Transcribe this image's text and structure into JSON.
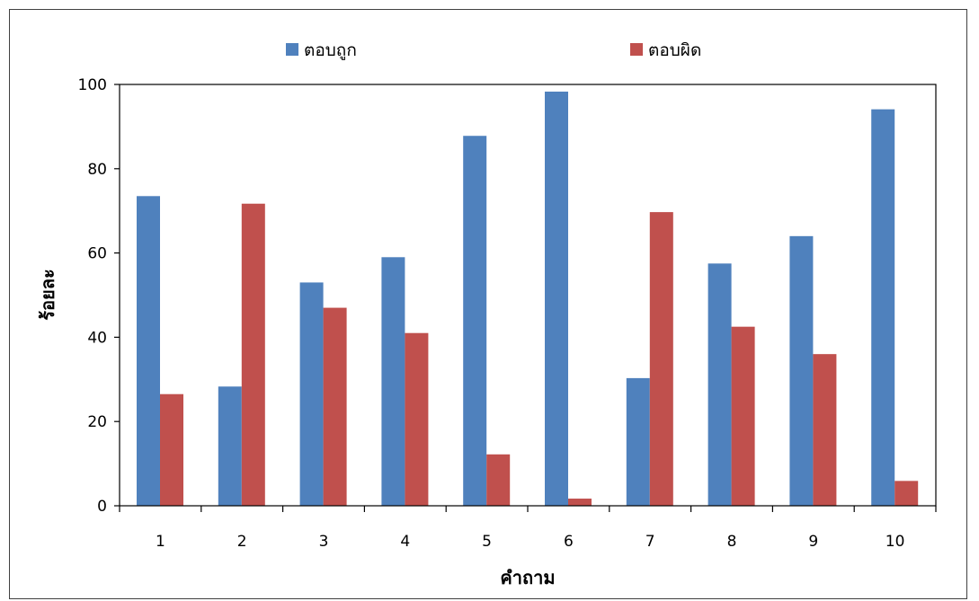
{
  "chart_data": {
    "type": "bar",
    "title": "",
    "xlabel": "คำถาม",
    "ylabel": "ร้อยละ",
    "categories": [
      "1",
      "2",
      "3",
      "4",
      "5",
      "6",
      "7",
      "8",
      "9",
      "10"
    ],
    "series": [
      {
        "name": "ตอบถูก",
        "color": "#4F81BD",
        "values": [
          73.5,
          28.3,
          53.0,
          59.0,
          87.8,
          98.3,
          30.3,
          57.5,
          64.0,
          94.1
        ]
      },
      {
        "name": "ตอบผิด",
        "color": "#C0504D",
        "values": [
          26.5,
          71.7,
          47.0,
          41.0,
          12.2,
          1.7,
          69.7,
          42.5,
          36.0,
          5.9
        ]
      }
    ],
    "ylim": [
      0,
      100
    ],
    "yticks": [
      0,
      20,
      40,
      60,
      80,
      100
    ],
    "grid": false,
    "legend_position": "top"
  }
}
